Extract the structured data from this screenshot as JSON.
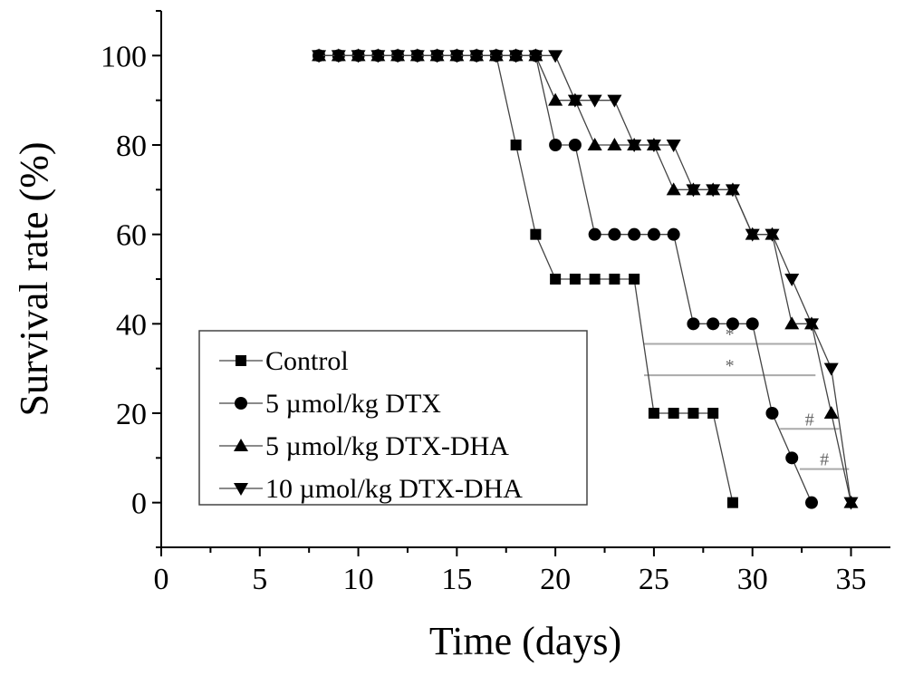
{
  "chart_data": {
    "type": "line",
    "xlabel": "Time (days)",
    "ylabel": "Survival rate (%)",
    "xlim": [
      0,
      37
    ],
    "ylim": [
      -10,
      110
    ],
    "x_ticks": [
      0,
      5,
      10,
      15,
      20,
      25,
      30,
      35
    ],
    "y_ticks": [
      0,
      20,
      40,
      60,
      80,
      100
    ],
    "legend_position": "bottom-left",
    "series": [
      {
        "name": "Control",
        "marker": "square",
        "points": [
          [
            8,
            100
          ],
          [
            9,
            100
          ],
          [
            10,
            100
          ],
          [
            11,
            100
          ],
          [
            12,
            100
          ],
          [
            13,
            100
          ],
          [
            14,
            100
          ],
          [
            15,
            100
          ],
          [
            16,
            100
          ],
          [
            17,
            100
          ],
          [
            18,
            80
          ],
          [
            19,
            60
          ],
          [
            20,
            50
          ],
          [
            21,
            50
          ],
          [
            22,
            50
          ],
          [
            23,
            50
          ],
          [
            24,
            50
          ],
          [
            25,
            20
          ],
          [
            26,
            20
          ],
          [
            27,
            20
          ],
          [
            28,
            20
          ],
          [
            29,
            0
          ]
        ]
      },
      {
        "name": "5 µmol/kg DTX",
        "marker": "circle",
        "points": [
          [
            8,
            100
          ],
          [
            9,
            100
          ],
          [
            10,
            100
          ],
          [
            11,
            100
          ],
          [
            12,
            100
          ],
          [
            13,
            100
          ],
          [
            14,
            100
          ],
          [
            15,
            100
          ],
          [
            16,
            100
          ],
          [
            17,
            100
          ],
          [
            18,
            100
          ],
          [
            19,
            100
          ],
          [
            20,
            80
          ],
          [
            21,
            80
          ],
          [
            22,
            60
          ],
          [
            23,
            60
          ],
          [
            24,
            60
          ],
          [
            25,
            60
          ],
          [
            26,
            60
          ],
          [
            27,
            40
          ],
          [
            28,
            40
          ],
          [
            29,
            40
          ],
          [
            30,
            40
          ],
          [
            31,
            20
          ],
          [
            32,
            10
          ],
          [
            33,
            0
          ]
        ]
      },
      {
        "name": "5 µmol/kg DTX-DHA",
        "marker": "triangle-up",
        "points": [
          [
            8,
            100
          ],
          [
            9,
            100
          ],
          [
            10,
            100
          ],
          [
            11,
            100
          ],
          [
            12,
            100
          ],
          [
            13,
            100
          ],
          [
            14,
            100
          ],
          [
            15,
            100
          ],
          [
            16,
            100
          ],
          [
            17,
            100
          ],
          [
            18,
            100
          ],
          [
            19,
            100
          ],
          [
            20,
            90
          ],
          [
            21,
            90
          ],
          [
            22,
            80
          ],
          [
            23,
            80
          ],
          [
            24,
            80
          ],
          [
            25,
            80
          ],
          [
            26,
            70
          ],
          [
            27,
            70
          ],
          [
            28,
            70
          ],
          [
            29,
            70
          ],
          [
            30,
            60
          ],
          [
            31,
            60
          ],
          [
            32,
            40
          ],
          [
            33,
            40
          ],
          [
            34,
            20
          ],
          [
            35,
            0
          ]
        ]
      },
      {
        "name": "10 µmol/kg DTX-DHA",
        "marker": "triangle-down",
        "points": [
          [
            8,
            100
          ],
          [
            9,
            100
          ],
          [
            10,
            100
          ],
          [
            11,
            100
          ],
          [
            12,
            100
          ],
          [
            13,
            100
          ],
          [
            14,
            100
          ],
          [
            15,
            100
          ],
          [
            16,
            100
          ],
          [
            17,
            100
          ],
          [
            18,
            100
          ],
          [
            19,
            100
          ],
          [
            20,
            100
          ],
          [
            21,
            90
          ],
          [
            22,
            90
          ],
          [
            23,
            90
          ],
          [
            24,
            80
          ],
          [
            25,
            80
          ],
          [
            26,
            80
          ],
          [
            27,
            70
          ],
          [
            28,
            70
          ],
          [
            29,
            70
          ],
          [
            30,
            60
          ],
          [
            31,
            60
          ],
          [
            32,
            50
          ],
          [
            33,
            40
          ],
          [
            34,
            30
          ],
          [
            35,
            0
          ]
        ]
      }
    ],
    "annotations": [
      {
        "label": "*",
        "x1": 24.5,
        "x2": 33.2,
        "y": 35.5
      },
      {
        "label": "*",
        "x1": 24.5,
        "x2": 33.2,
        "y": 28.5
      },
      {
        "label": "#",
        "x1": 31.4,
        "x2": 34.4,
        "y": 16.5
      },
      {
        "label": "#",
        "x1": 32.4,
        "x2": 34.9,
        "y": 7.5
      }
    ]
  }
}
